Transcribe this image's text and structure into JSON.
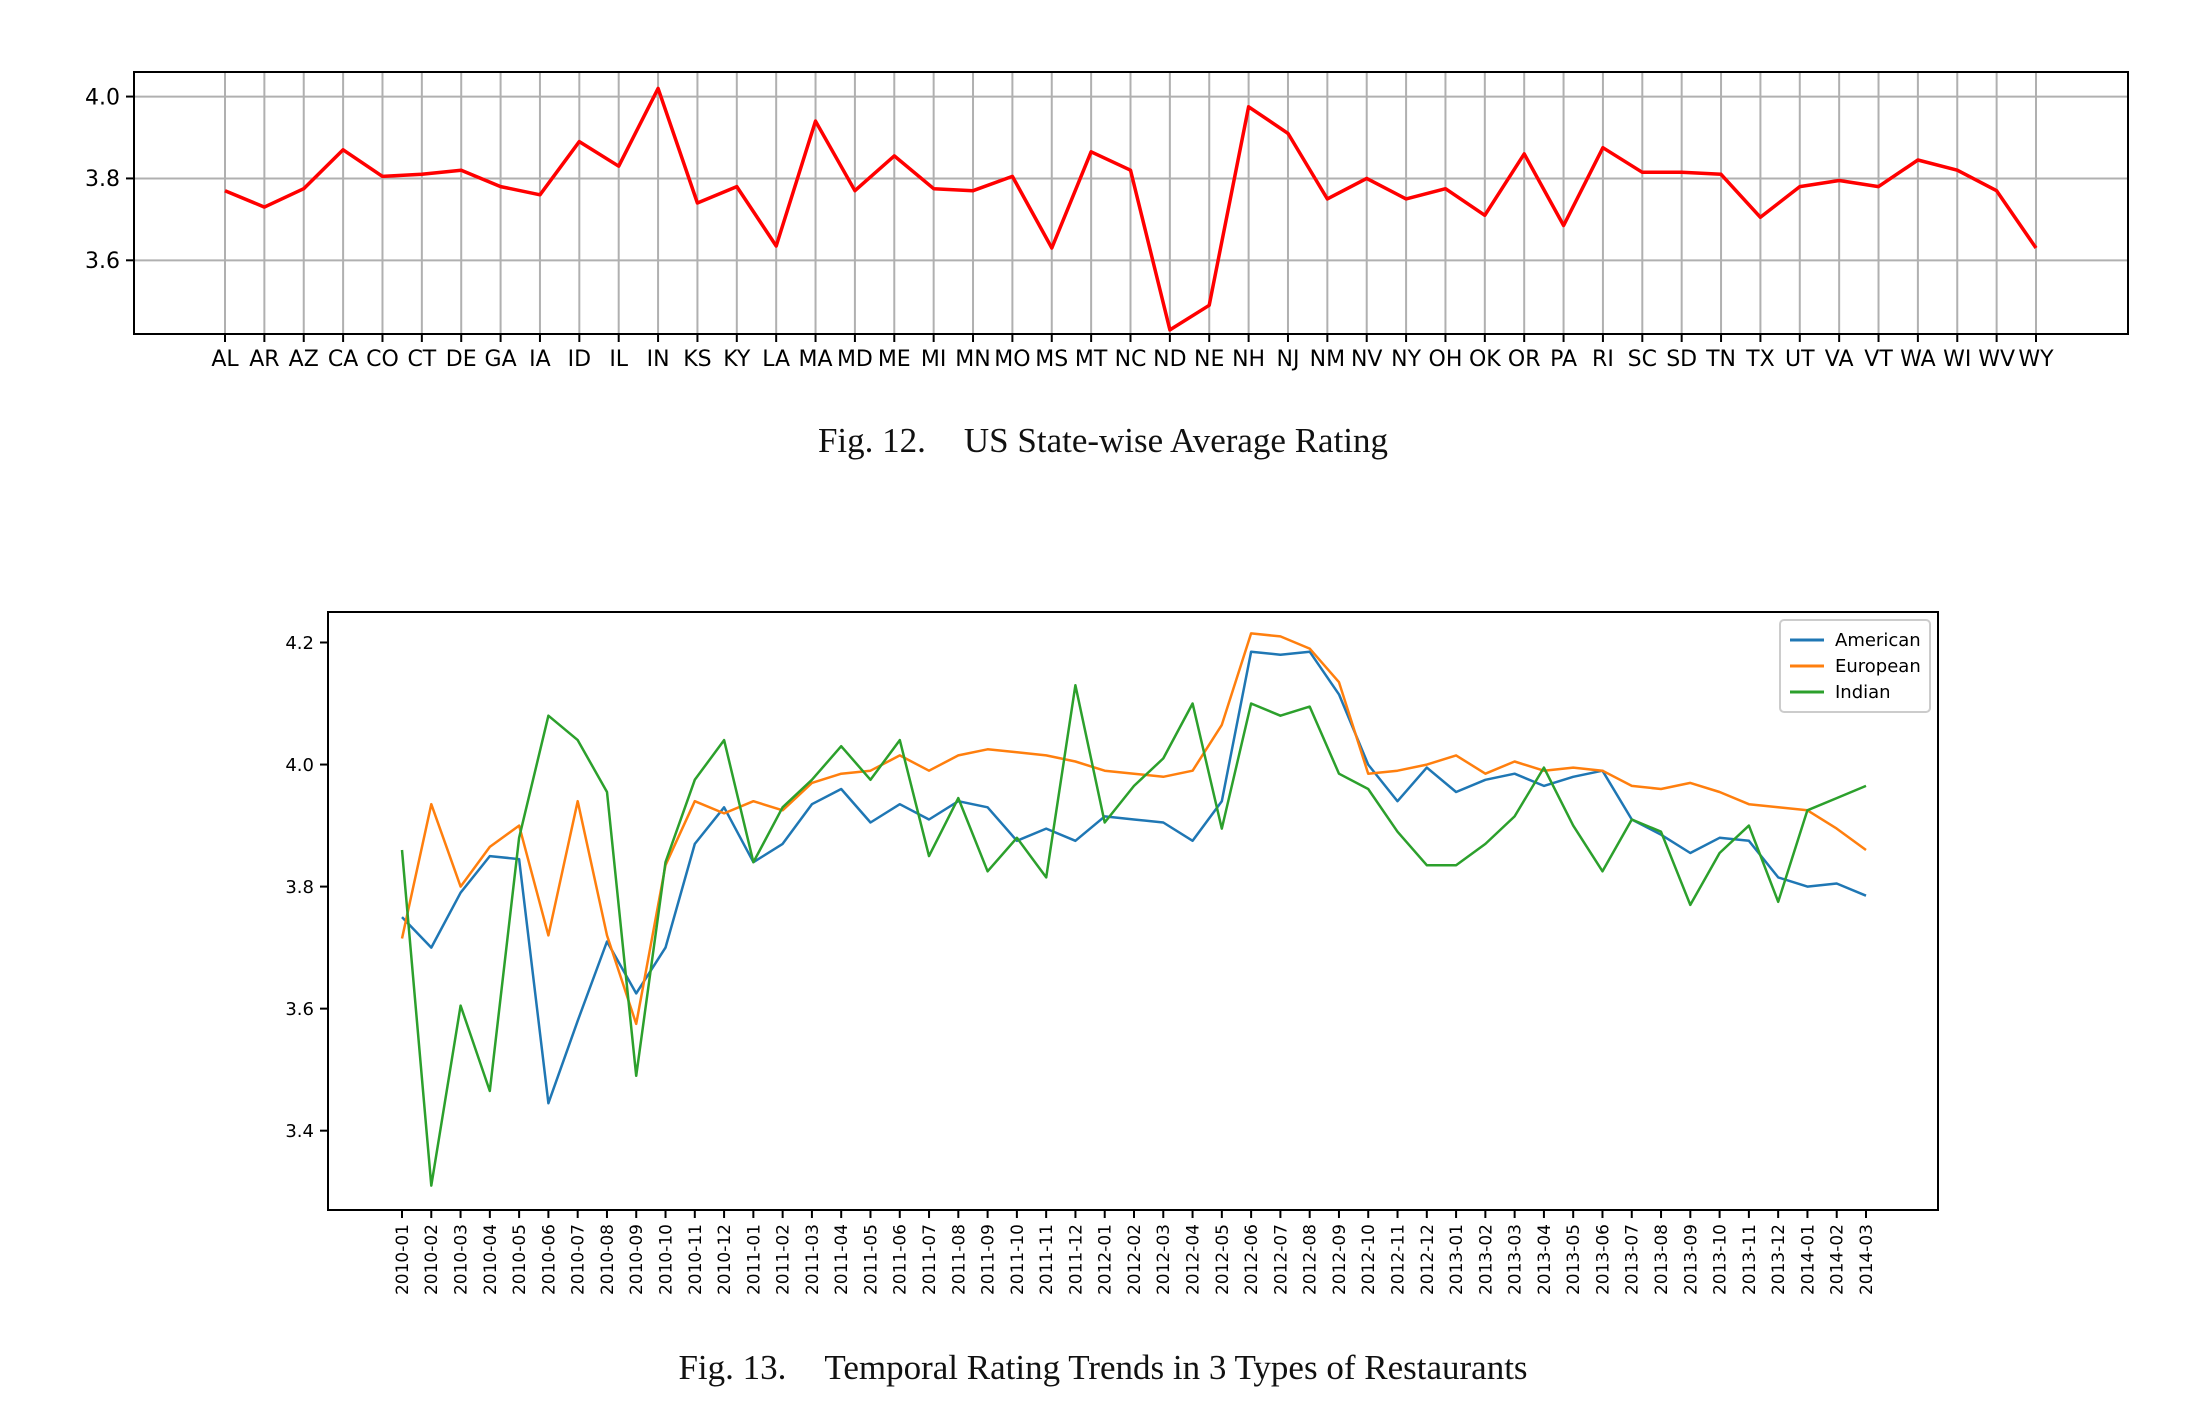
{
  "figures": [
    {
      "caption_label": "Fig. 12.",
      "caption_text": "US State-wise Average Rating"
    },
    {
      "caption_label": "Fig. 13.",
      "caption_text": "Temporal Rating Trends in 3 Types of Restaurants"
    }
  ],
  "chart_data": [
    {
      "type": "line",
      "title": "",
      "xlabel": "",
      "ylabel": "",
      "grid": true,
      "ylim": [
        3.42,
        4.06
      ],
      "yticks": [
        3.6,
        3.8,
        4.0
      ],
      "categories": [
        "AL",
        "AR",
        "AZ",
        "CA",
        "CO",
        "CT",
        "DE",
        "GA",
        "IA",
        "ID",
        "IL",
        "IN",
        "KS",
        "KY",
        "LA",
        "MA",
        "MD",
        "ME",
        "MI",
        "MN",
        "MO",
        "MS",
        "MT",
        "NC",
        "ND",
        "NE",
        "NH",
        "NJ",
        "NM",
        "NV",
        "NY",
        "OH",
        "OK",
        "OR",
        "PA",
        "RI",
        "SC",
        "SD",
        "TN",
        "TX",
        "UT",
        "VA",
        "VT",
        "WA",
        "WI",
        "WV",
        "WY"
      ],
      "series": [
        {
          "color": "#ff0000",
          "values": [
            3.77,
            3.73,
            3.775,
            3.87,
            3.805,
            3.81,
            3.82,
            3.78,
            3.76,
            3.89,
            3.83,
            4.02,
            3.74,
            3.78,
            3.635,
            3.94,
            3.77,
            3.855,
            3.775,
            3.77,
            3.805,
            3.63,
            3.865,
            3.82,
            3.43,
            3.49,
            3.975,
            3.91,
            3.75,
            3.8,
            3.75,
            3.775,
            3.71,
            3.86,
            3.685,
            3.875,
            3.815,
            3.815,
            3.81,
            3.705,
            3.78,
            3.795,
            3.78,
            3.845,
            3.82,
            3.77,
            3.63
          ]
        }
      ]
    },
    {
      "type": "line",
      "title": "",
      "xlabel": "",
      "ylabel": "",
      "grid": false,
      "legend": "top-right",
      "ylim": [
        3.27,
        4.25
      ],
      "yticks": [
        3.4,
        3.6,
        3.8,
        4.0,
        4.2
      ],
      "categories": [
        "2010-01",
        "2010-02",
        "2010-03",
        "2010-04",
        "2010-05",
        "2010-06",
        "2010-07",
        "2010-08",
        "2010-09",
        "2010-10",
        "2010-11",
        "2010-12",
        "2011-01",
        "2011-02",
        "2011-03",
        "2011-04",
        "2011-05",
        "2011-06",
        "2011-07",
        "2011-08",
        "2011-09",
        "2011-10",
        "2011-11",
        "2011-12",
        "2012-01",
        "2012-02",
        "2012-03",
        "2012-04",
        "2012-05",
        "2012-06",
        "2012-07",
        "2012-08",
        "2012-09",
        "2012-10",
        "2012-11",
        "2012-12",
        "2013-01",
        "2013-02",
        "2013-03",
        "2013-04",
        "2013-05",
        "2013-06",
        "2013-07",
        "2013-08",
        "2013-09",
        "2013-10",
        "2013-11",
        "2013-12",
        "2014-01",
        "2014-02",
        "2014-03"
      ],
      "series": [
        {
          "name": "American",
          "color": "#1f77b4",
          "values": [
            3.75,
            3.7,
            3.79,
            3.85,
            3.845,
            3.445,
            3.58,
            3.71,
            3.625,
            3.7,
            3.87,
            3.93,
            3.84,
            3.87,
            3.935,
            3.96,
            3.905,
            3.935,
            3.91,
            3.94,
            3.93,
            3.875,
            3.895,
            3.875,
            3.915,
            3.91,
            3.905,
            3.875,
            3.94,
            4.185,
            4.18,
            4.185,
            4.115,
            4.0,
            3.94,
            3.995,
            3.955,
            3.975,
            3.985,
            3.965,
            3.98,
            3.99,
            3.91,
            3.885,
            3.855,
            3.88,
            3.875,
            3.815,
            3.8,
            3.805,
            3.785
          ]
        },
        {
          "name": "European",
          "color": "#ff7f0e",
          "values": [
            3.715,
            3.935,
            3.8,
            3.865,
            3.9,
            3.72,
            3.94,
            3.72,
            3.575,
            3.835,
            3.94,
            3.92,
            3.94,
            3.925,
            3.97,
            3.985,
            3.99,
            4.015,
            3.99,
            4.015,
            4.025,
            4.02,
            4.015,
            4.005,
            3.99,
            3.985,
            3.98,
            3.99,
            4.065,
            4.215,
            4.21,
            4.19,
            4.135,
            3.985,
            3.99,
            4.0,
            4.015,
            3.985,
            4.005,
            3.99,
            3.995,
            3.99,
            3.965,
            3.96,
            3.97,
            3.955,
            3.935,
            3.93,
            3.925,
            3.895,
            3.86
          ]
        },
        {
          "name": "Indian",
          "color": "#2ca02c",
          "values": [
            3.86,
            3.31,
            3.605,
            3.465,
            3.88,
            4.08,
            4.04,
            3.955,
            3.49,
            3.84,
            3.975,
            4.04,
            3.84,
            3.93,
            3.975,
            4.03,
            3.975,
            4.04,
            3.85,
            3.945,
            3.825,
            3.88,
            3.815,
            4.13,
            3.905,
            3.965,
            4.01,
            4.1,
            3.895,
            4.1,
            4.08,
            4.095,
            3.985,
            3.96,
            3.89,
            3.835,
            3.835,
            3.87,
            3.915,
            3.995,
            3.9,
            3.825,
            3.91,
            3.89,
            3.77,
            3.855,
            3.9,
            3.775,
            3.925,
            3.945,
            3.965
          ]
        }
      ]
    }
  ]
}
